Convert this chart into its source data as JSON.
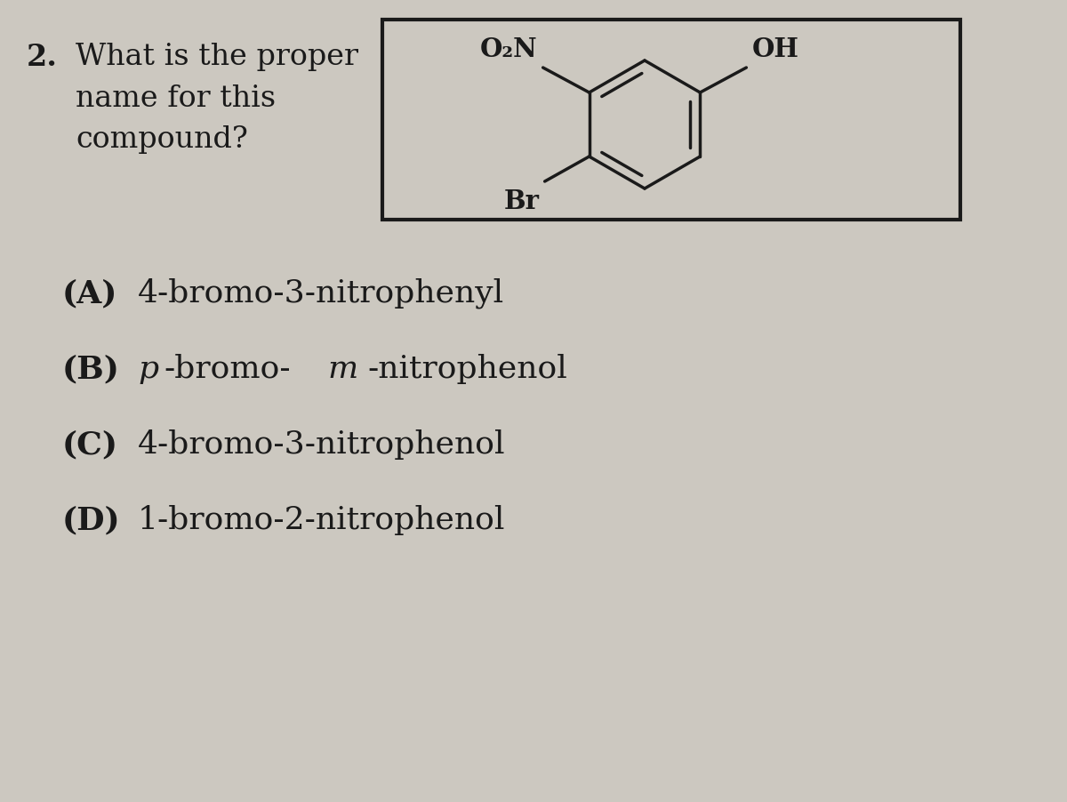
{
  "question_number": "2.",
  "question_text_line1": "What is the proper",
  "question_text_line2": "name for this",
  "question_text_line3": "compound?",
  "choices": [
    {
      "label": "(A)",
      "text": "4-bromo-3-nitrophenyl"
    },
    {
      "label": "(B)",
      "text_parts": [
        {
          "text": "p",
          "italic": true
        },
        {
          "text": "-bromo-",
          "italic": false
        },
        {
          "text": "m",
          "italic": true
        },
        {
          "text": "-nitrophenol",
          "italic": false
        }
      ]
    },
    {
      "label": "(C)",
      "text": "4-bromo-3-nitrophenol"
    },
    {
      "label": "(D)",
      "text": "1-bromo-2-nitrophenol"
    }
  ],
  "bg_color": "#ccc8c0",
  "text_color": "#1a1a1a",
  "font_size_question": 24,
  "font_size_choices": 26,
  "box_color": "#1a1a1a",
  "molecule_label_O2N": "O₂N",
  "molecule_label_OH": "OH",
  "molecule_label_Br": "Br"
}
